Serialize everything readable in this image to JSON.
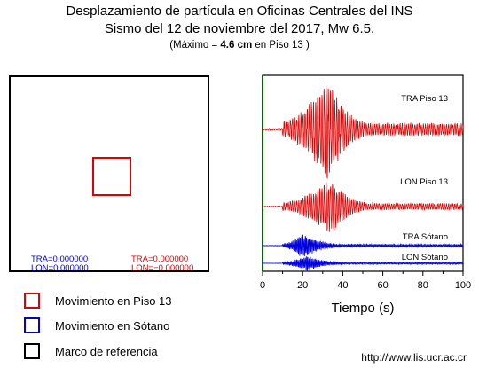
{
  "header": {
    "title_line1": "Desplazamiento de partícula en Oficinas Centrales del INS",
    "title_line2": "Sismo del 12 de noviembre del 2017, Mw 6.5.",
    "max_prefix": "(Máximo = ",
    "max_value": "4.6 cm",
    "max_suffix": " en Piso 13   )"
  },
  "reference_frame": {
    "blue_tra": "TRA=0.000000",
    "blue_lon": "LON=0.000000",
    "red_tra": "TRA=0.000000",
    "red_lon": "LON=−0.000000"
  },
  "legend": [
    {
      "label": "Movimiento en Piso 13",
      "color": "#e00000"
    },
    {
      "label": "Movimiento en Sótano",
      "color": "#0000dd"
    },
    {
      "label": "Marco de referencia",
      "color": "#000000"
    }
  ],
  "footer": {
    "url": "http://www.lis.ucr.ac.cr"
  },
  "chart_data": {
    "type": "line",
    "xlabel": "Tiempo (s)",
    "xlim": [
      0,
      100
    ],
    "xticks": [
      0,
      20,
      40,
      60,
      80,
      100
    ],
    "grid": false,
    "series": [
      {
        "name": "TRA Piso 13",
        "color": "#e00000",
        "amplitude": 1.0,
        "onset": 10,
        "peak": 33
      },
      {
        "name": "LON Piso 13",
        "color": "#e00000",
        "amplitude": 0.78,
        "onset": 10,
        "peak": 34
      },
      {
        "name": "TRA Sótano",
        "color": "#0000dd",
        "amplitude": 0.35,
        "onset": 10,
        "peak": 20
      },
      {
        "name": "LON Sótano",
        "color": "#0000dd",
        "amplitude": 0.22,
        "onset": 10,
        "peak": 22
      }
    ]
  }
}
